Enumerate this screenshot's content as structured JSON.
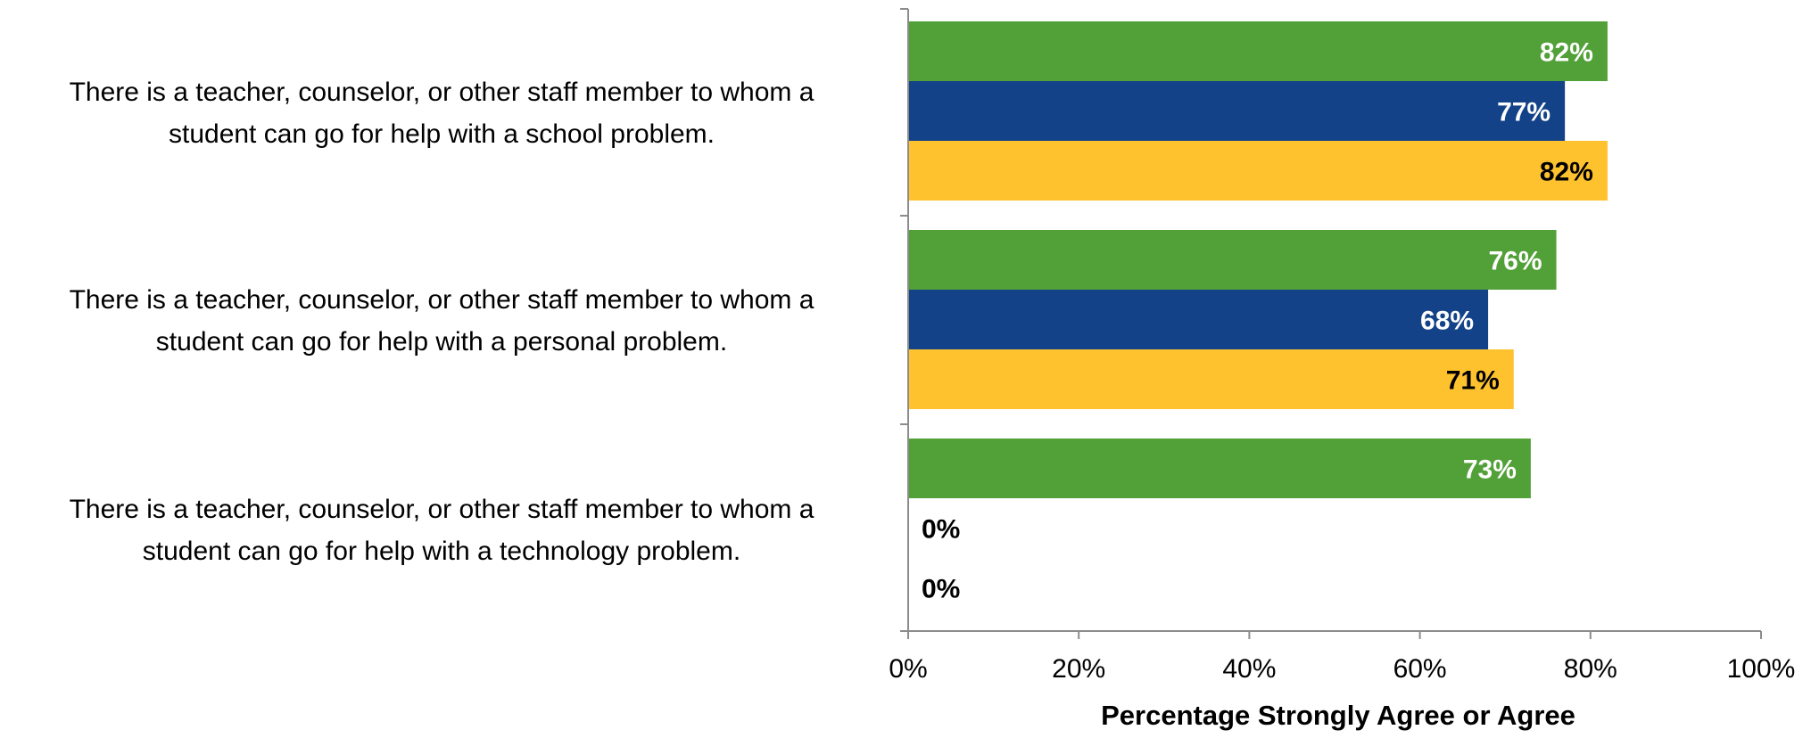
{
  "chart_data": {
    "type": "bar",
    "orientation": "horizontal",
    "categories": [
      "There is a teacher, counselor, or other staff member to whom a student can go for help with a school problem.",
      "There is a teacher, counselor, or other staff member to whom a student can go for help with a personal problem.",
      "There is a teacher, counselor, or other staff member to whom a student can go for help with a technology problem."
    ],
    "category_lines": [
      [
        "There is a teacher, counselor, or other staff member to whom a",
        "student can go for help with a school problem."
      ],
      [
        "There is a teacher, counselor, or other staff member to whom a",
        "student can go for help with a personal problem."
      ],
      [
        "There is a teacher, counselor, or other staff member to whom a",
        "student can go for help with a technology problem."
      ]
    ],
    "series": [
      {
        "values": [
          82,
          76,
          73
        ],
        "color": "#52A038",
        "value_labels": [
          "82%",
          "76%",
          "73%"
        ]
      },
      {
        "values": [
          77,
          68,
          0
        ],
        "color": "#134288",
        "value_labels": [
          "77%",
          "68%",
          "0%"
        ]
      },
      {
        "values": [
          82,
          71,
          0
        ],
        "color": "#FFC22F",
        "value_labels": [
          "82%",
          "71%",
          "0%"
        ]
      }
    ],
    "xlim": [
      0,
      100
    ],
    "x_ticks": [
      "0%",
      "20%",
      "40%",
      "60%",
      "80%",
      "100%"
    ],
    "xlabel": "Percentage Strongly Agree or Agree",
    "ylabel": "",
    "title": "",
    "legend": "none",
    "grid": false
  }
}
